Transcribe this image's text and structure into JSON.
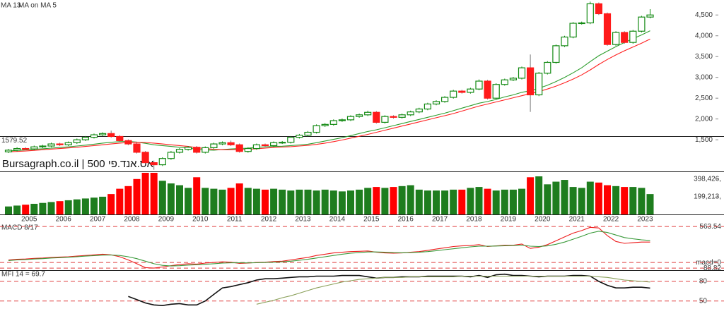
{
  "chart_data": [
    {
      "type": "candlestick",
      "watermark": "Bursagraph.co.il | אס.אנד.פי 500",
      "ref_line": 1579.52,
      "up_color": "#138a13",
      "down_color": "#ff1a1a",
      "open": [
        1210,
        1250,
        1290,
        1280,
        1330,
        1350,
        1400,
        1380,
        1430,
        1500,
        1560,
        1620,
        1650,
        1580,
        1480,
        1400,
        1200,
        950,
        900,
        1050,
        1200,
        1270,
        1320,
        1200,
        1310,
        1400,
        1430,
        1380,
        1220,
        1290,
        1380,
        1360,
        1430,
        1440,
        1560,
        1610,
        1680,
        1840,
        1870,
        1960,
        1980,
        2060,
        2100,
        2160,
        1920,
        2060,
        2040,
        2100,
        2170,
        2240,
        2360,
        2420,
        2520,
        2670,
        2640,
        2720,
        2910,
        2500,
        2830,
        2940,
        2980,
        3230,
        2580,
        3100,
        3360,
        3760,
        3970,
        4300,
        4310,
        4770,
        4530,
        3790,
        4080,
        3840,
        4110,
        4450
      ],
      "high": [
        1280,
        1320,
        1320,
        1360,
        1380,
        1430,
        1430,
        1460,
        1530,
        1590,
        1650,
        1680,
        1720,
        1610,
        1510,
        1430,
        1230,
        1000,
        1080,
        1230,
        1300,
        1350,
        1350,
        1340,
        1430,
        1460,
        1480,
        1410,
        1320,
        1410,
        1410,
        1460,
        1470,
        1590,
        1640,
        1710,
        1870,
        1900,
        1990,
        2010,
        2090,
        2130,
        2200,
        2190,
        2090,
        2090,
        2130,
        2200,
        2270,
        2390,
        2450,
        2550,
        2700,
        2700,
        2750,
        2950,
        2940,
        2860,
        2970,
        3010,
        3260,
        3550,
        3130,
        3390,
        3790,
        4000,
        4330,
        4340,
        4820,
        4800,
        4560,
        4110,
        4110,
        4140,
        4480,
        4640
      ],
      "low": [
        1180,
        1220,
        1250,
        1250,
        1300,
        1320,
        1350,
        1350,
        1400,
        1470,
        1530,
        1590,
        1550,
        1450,
        1370,
        1170,
        920,
        780,
        870,
        1020,
        1170,
        1240,
        1170,
        1170,
        1280,
        1370,
        1350,
        1190,
        1190,
        1260,
        1330,
        1330,
        1400,
        1410,
        1530,
        1580,
        1650,
        1810,
        1840,
        1930,
        1950,
        2030,
        2070,
        1890,
        1890,
        2010,
        2010,
        2070,
        2140,
        2210,
        2330,
        2390,
        2490,
        2610,
        2610,
        2690,
        2470,
        2470,
        2800,
        2910,
        2950,
        2170,
        2550,
        3070,
        3330,
        3730,
        3940,
        4270,
        4280,
        4500,
        3760,
        3760,
        3810,
        3810,
        4080,
        4420
      ],
      "close": [
        1250,
        1290,
        1280,
        1330,
        1350,
        1400,
        1380,
        1430,
        1500,
        1560,
        1620,
        1650,
        1580,
        1480,
        1400,
        1200,
        950,
        900,
        1050,
        1200,
        1270,
        1320,
        1200,
        1310,
        1400,
        1430,
        1380,
        1220,
        1290,
        1380,
        1360,
        1430,
        1440,
        1560,
        1610,
        1680,
        1840,
        1870,
        1960,
        1980,
        2060,
        2100,
        2160,
        1920,
        2060,
        2040,
        2100,
        2170,
        2240,
        2360,
        2420,
        2520,
        2670,
        2640,
        2720,
        2910,
        2500,
        2830,
        2940,
        2980,
        3230,
        2580,
        3100,
        3360,
        3760,
        3970,
        4300,
        4310,
        4770,
        4530,
        3790,
        4080,
        3840,
        4110,
        4450,
        4500
      ],
      "series": [
        {
          "name": "MA 13",
          "color": "#2e9e2e",
          "values": [
            1230,
            1245,
            1255,
            1270,
            1285,
            1300,
            1315,
            1330,
            1350,
            1370,
            1395,
            1420,
            1440,
            1455,
            1460,
            1445,
            1415,
            1380,
            1360,
            1340,
            1320,
            1300,
            1275,
            1255,
            1250,
            1265,
            1280,
            1290,
            1300,
            1320,
            1330,
            1340,
            1345,
            1360,
            1375,
            1395,
            1430,
            1470,
            1510,
            1550,
            1600,
            1650,
            1700,
            1740,
            1790,
            1840,
            1890,
            1940,
            1990,
            2040,
            2090,
            2140,
            2200,
            2260,
            2320,
            2380,
            2420,
            2470,
            2530,
            2580,
            2640,
            2680,
            2740,
            2810,
            2900,
            3000,
            3110,
            3230,
            3380,
            3520,
            3630,
            3740,
            3840,
            3930,
            4020,
            4120
          ]
        },
        {
          "name": "MA on MA 5",
          "color": "#ff2020",
          "values": [
            1210,
            1220,
            1230,
            1245,
            1260,
            1275,
            1290,
            1305,
            1320,
            1340,
            1360,
            1380,
            1400,
            1420,
            1435,
            1440,
            1435,
            1420,
            1400,
            1380,
            1360,
            1340,
            1310,
            1290,
            1270,
            1260,
            1260,
            1265,
            1275,
            1285,
            1300,
            1315,
            1325,
            1335,
            1350,
            1365,
            1390,
            1420,
            1455,
            1495,
            1540,
            1585,
            1630,
            1680,
            1730,
            1780,
            1830,
            1880,
            1930,
            1980,
            2030,
            2080,
            2130,
            2190,
            2250,
            2310,
            2360,
            2410,
            2460,
            2510,
            2560,
            2610,
            2660,
            2720,
            2790,
            2870,
            2960,
            3060,
            3180,
            3310,
            3430,
            3540,
            3640,
            3730,
            3820,
            3920
          ]
        }
      ],
      "ylim": [
        740,
        4860
      ],
      "yticks": [
        {
          "value": 1500,
          "label": "1,500"
        },
        {
          "value": 2000,
          "label": "2,000"
        },
        {
          "value": 2500,
          "label": "2,500"
        },
        {
          "value": 3000,
          "label": "3,000"
        },
        {
          "value": 3500,
          "label": "3,500"
        },
        {
          "value": 4000,
          "label": "4,000"
        },
        {
          "value": 4500,
          "label": "4,500"
        }
      ]
    },
    {
      "type": "bar",
      "up_color": "#1e7d1e",
      "down_color": "#ff0000",
      "categories": [
        null,
        null,
        null,
        "2005",
        null,
        null,
        null,
        "2006",
        null,
        null,
        null,
        "2007",
        null,
        null,
        null,
        "2008",
        null,
        null,
        null,
        "2009",
        null,
        null,
        null,
        "2010",
        null,
        null,
        null,
        "2011",
        null,
        null,
        null,
        "2012",
        null,
        null,
        null,
        "2013",
        null,
        null,
        null,
        "2014",
        null,
        null,
        null,
        "2015",
        null,
        null,
        null,
        "2016",
        null,
        null,
        null,
        "2017",
        null,
        null,
        null,
        "2018",
        null,
        null,
        null,
        "2019",
        null,
        null,
        null,
        "2020",
        null,
        null,
        null,
        "2021",
        null,
        null,
        null,
        "2022",
        null,
        null,
        null,
        "2023"
      ],
      "values": [
        90000,
        100000,
        110000,
        120000,
        130000,
        140000,
        150000,
        160000,
        170000,
        180000,
        190000,
        200000,
        230000,
        290000,
        320000,
        400000,
        470000,
        470000,
        380000,
        350000,
        330000,
        300000,
        420000,
        300000,
        290000,
        280000,
        300000,
        350000,
        300000,
        290000,
        280000,
        290000,
        280000,
        270000,
        280000,
        280000,
        270000,
        280000,
        270000,
        260000,
        270000,
        280000,
        300000,
        310000,
        300000,
        310000,
        320000,
        330000,
        280000,
        270000,
        270000,
        270000,
        280000,
        280000,
        300000,
        310000,
        290000,
        270000,
        280000,
        280000,
        290000,
        420000,
        430000,
        340000,
        370000,
        390000,
        310000,
        300000,
        370000,
        360000,
        330000,
        320000,
        310000,
        310000,
        300000,
        230000
      ],
      "ylim": [
        0,
        478000
      ],
      "yticks": [
        {
          "value": 199213,
          "label": "199,213,"
        },
        {
          "value": 398426,
          "label": "398,426,"
        }
      ]
    },
    {
      "type": "line",
      "title": "MACD 8/17",
      "grid": true,
      "grid_color": "#e04040",
      "series": [
        {
          "color": "#ee1c1c",
          "values": [
            40,
            50,
            55,
            65,
            70,
            80,
            85,
            90,
            100,
            110,
            120,
            130,
            120,
            90,
            40,
            -20,
            -80,
            -88,
            -70,
            -50,
            -30,
            -20,
            -25,
            -10,
            0,
            10,
            5,
            -15,
            -10,
            0,
            5,
            15,
            20,
            40,
            60,
            80,
            110,
            130,
            150,
            160,
            170,
            175,
            180,
            160,
            150,
            145,
            150,
            160,
            170,
            190,
            210,
            230,
            250,
            260,
            265,
            280,
            250,
            260,
            270,
            270,
            290,
            220,
            240,
            280,
            340,
            400,
            460,
            500,
            550,
            540,
            420,
            330,
            300,
            310,
            320,
            320
          ]
        },
        {
          "color": "#3a9a3a",
          "values": [
            30,
            40,
            45,
            55,
            60,
            70,
            75,
            82,
            90,
            100,
            108,
            115,
            118,
            110,
            90,
            60,
            20,
            -20,
            -45,
            -55,
            -50,
            -40,
            -35,
            -28,
            -20,
            -10,
            -5,
            -5,
            -6,
            -4,
            0,
            5,
            10,
            20,
            35,
            50,
            70,
            90,
            110,
            130,
            145,
            155,
            165,
            165,
            160,
            155,
            153,
            155,
            160,
            170,
            185,
            200,
            215,
            230,
            245,
            255,
            255,
            258,
            262,
            265,
            272,
            255,
            250,
            260,
            285,
            320,
            365,
            410,
            460,
            490,
            470,
            430,
            390,
            370,
            355,
            345
          ]
        }
      ],
      "ylim": [
        -120,
        620
      ],
      "yticks": [
        -88.82,
        {
          "value": 0,
          "label": "macd=0"
        },
        563.54
      ]
    },
    {
      "type": "line",
      "title": "MFI 14 = 69.7",
      "grid": true,
      "grid_color": "#e04040",
      "series": [
        {
          "color": "#111111",
          "values": [
            null,
            null,
            null,
            null,
            null,
            null,
            null,
            null,
            null,
            null,
            null,
            null,
            null,
            null,
            57,
            52,
            47,
            44,
            43,
            45,
            46,
            44,
            44,
            50,
            60,
            70,
            72,
            75,
            78,
            82,
            84,
            84,
            85,
            86,
            87,
            87,
            88,
            88,
            88,
            89,
            89,
            89,
            87,
            85,
            86,
            86,
            87,
            87,
            87,
            88,
            88,
            88,
            88,
            88,
            87,
            89,
            86,
            90,
            91,
            89,
            89,
            88,
            87,
            88,
            88,
            88,
            89,
            89,
            88,
            80,
            74,
            70,
            70,
            71,
            71,
            69.7
          ]
        },
        {
          "color": "#8aa05a",
          "values": [
            null,
            null,
            null,
            null,
            null,
            null,
            null,
            null,
            null,
            null,
            null,
            null,
            null,
            null,
            null,
            null,
            null,
            null,
            null,
            null,
            null,
            null,
            null,
            null,
            null,
            null,
            null,
            null,
            null,
            45,
            48,
            51,
            55,
            58,
            62,
            66,
            70,
            73,
            76,
            79,
            81,
            83,
            84,
            85,
            86,
            86,
            86,
            87,
            87,
            87,
            87,
            87,
            87,
            88,
            88,
            88,
            88,
            88,
            88,
            88,
            88,
            88,
            88,
            88,
            88,
            88,
            88,
            88,
            88,
            87,
            86,
            84,
            82,
            81,
            80,
            79
          ]
        }
      ],
      "ylim": [
        27,
        95
      ],
      "yticks": [
        50,
        80
      ]
    }
  ]
}
